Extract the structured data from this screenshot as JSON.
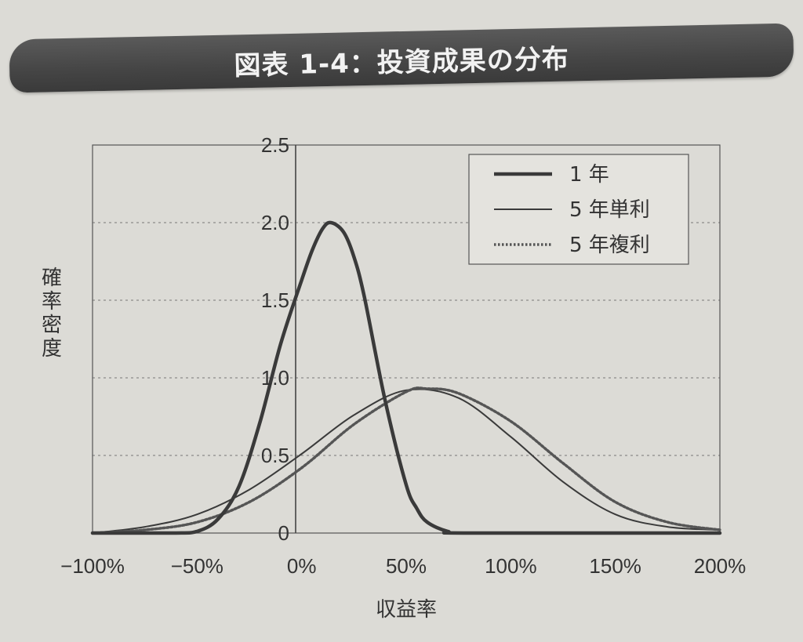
{
  "title": "図表 1-4：投資成果の分布",
  "chart_data": {
    "type": "line",
    "xlabel": "収益率",
    "ylabel": "確率密度",
    "x_ticks": [
      "−100%",
      "−50%",
      "0%",
      "50%",
      "100%",
      "150%",
      "200%"
    ],
    "y_ticks": [
      "0",
      "0.5",
      "1.0",
      "1.5",
      "2.0",
      "2.5"
    ],
    "xlim": [
      -100,
      200
    ],
    "ylim": [
      0,
      2.5
    ],
    "grid": "horizontal dashed",
    "legend_position": "top-right",
    "series": [
      {
        "name": "1 年",
        "style": "thick",
        "color": "#3a3a3a",
        "points": [
          [
            -100,
            0
          ],
          [
            -60,
            0
          ],
          [
            -50,
            0.01
          ],
          [
            -40,
            0.09
          ],
          [
            -30,
            0.3
          ],
          [
            -20,
            0.71
          ],
          [
            -10,
            1.22
          ],
          [
            0,
            1.63
          ],
          [
            5,
            1.82
          ],
          [
            10,
            1.96
          ],
          [
            14,
            2.0
          ],
          [
            20,
            1.94
          ],
          [
            25,
            1.78
          ],
          [
            30,
            1.52
          ],
          [
            40,
            0.85
          ],
          [
            50,
            0.31
          ],
          [
            55,
            0.16
          ],
          [
            60,
            0.07
          ],
          [
            70,
            0.01
          ],
          [
            80,
            0
          ],
          [
            200,
            0
          ]
        ]
      },
      {
        "name": "5 年単利",
        "style": "thin",
        "color": "#3a3a3a",
        "points": [
          [
            -100,
            0
          ],
          [
            -75,
            0.04
          ],
          [
            -50,
            0.12
          ],
          [
            -25,
            0.28
          ],
          [
            0,
            0.51
          ],
          [
            25,
            0.76
          ],
          [
            50,
            0.92
          ],
          [
            75,
            0.87
          ],
          [
            100,
            0.62
          ],
          [
            125,
            0.33
          ],
          [
            150,
            0.12
          ],
          [
            175,
            0.04
          ],
          [
            200,
            0.02
          ]
        ]
      },
      {
        "name": "5 年複利",
        "style": "dotted",
        "color": "#555555",
        "points": [
          [
            -100,
            0
          ],
          [
            -75,
            0.02
          ],
          [
            -50,
            0.07
          ],
          [
            -25,
            0.2
          ],
          [
            0,
            0.42
          ],
          [
            25,
            0.7
          ],
          [
            50,
            0.91
          ],
          [
            60,
            0.93
          ],
          [
            75,
            0.9
          ],
          [
            100,
            0.72
          ],
          [
            125,
            0.45
          ],
          [
            150,
            0.2
          ],
          [
            175,
            0.07
          ],
          [
            200,
            0.02
          ]
        ]
      }
    ]
  }
}
